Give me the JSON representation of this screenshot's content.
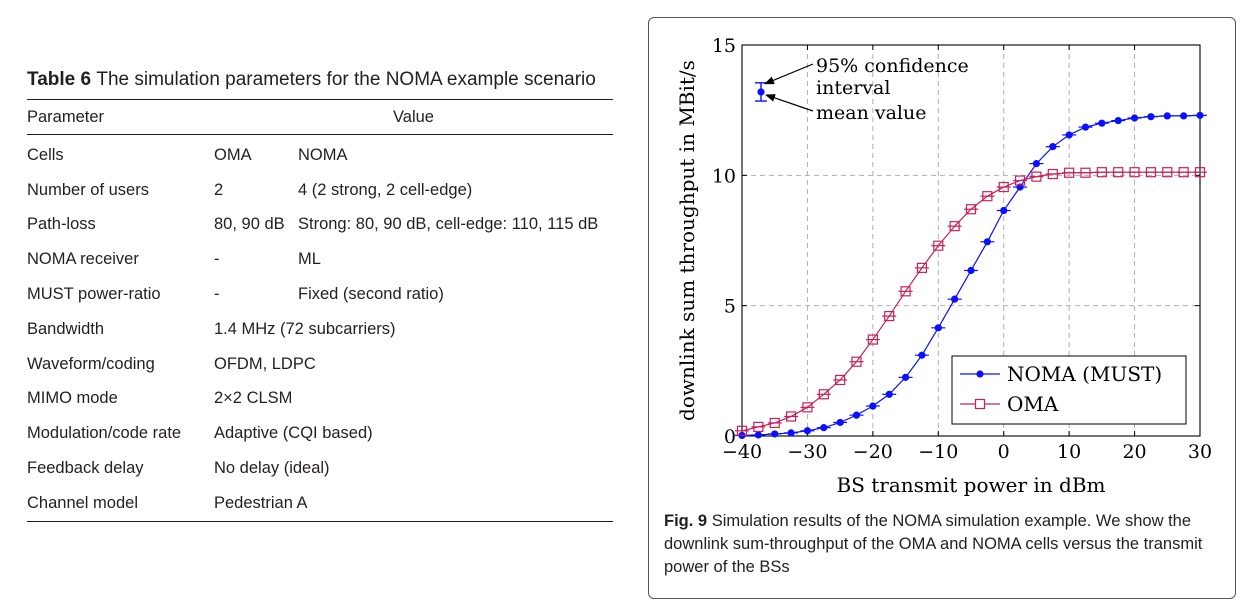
{
  "table": {
    "caption_label": "Table 6",
    "caption_text": "The simulation parameters for the NOMA example scenario",
    "headers": [
      "Parameter",
      "Value"
    ],
    "rows": [
      {
        "param": "Cells",
        "oma": "OMA",
        "noma": "NOMA",
        "span": false
      },
      {
        "param": "Number of users",
        "oma": "2",
        "noma": "4 (2 strong, 2 cell-edge)",
        "span": false
      },
      {
        "param": "Path-loss",
        "oma": "80, 90 dB",
        "noma": "Strong: 80, 90 dB, cell-edge: 110, 115 dB",
        "span": false
      },
      {
        "param": "NOMA receiver",
        "oma": "-",
        "noma": "ML",
        "span": false
      },
      {
        "param": "MUST power-ratio",
        "oma": "-",
        "noma": "Fixed (second ratio)",
        "span": false
      },
      {
        "param": "Bandwidth",
        "value": "1.4 MHz (72 subcarriers)",
        "span": true
      },
      {
        "param": "Waveform/coding",
        "value": "OFDM, LDPC",
        "span": true
      },
      {
        "param": "MIMO mode",
        "value": "2×2 CLSM",
        "span": true
      },
      {
        "param": "Modulation/code rate",
        "value": "Adaptive (CQI based)",
        "span": true
      },
      {
        "param": "Feedback delay",
        "value": "No delay (ideal)",
        "span": true
      },
      {
        "param": "Channel model",
        "value": "Pedestrian A",
        "span": true
      }
    ]
  },
  "figure": {
    "caption_label": "Fig. 9",
    "caption_text": "Simulation results of the NOMA simulation example. We show the downlink sum-throughput of the OMA and NOMA cells versus the transmit power of the BSs"
  },
  "chart_data": {
    "type": "line",
    "xlabel": "BS transmit power in dBm",
    "ylabel": "downlink sum throughput in MBit/s",
    "xlim": [
      -40,
      30
    ],
    "ylim": [
      0,
      15
    ],
    "xticks": [
      -40,
      -30,
      -20,
      -10,
      0,
      10,
      20,
      30
    ],
    "xtick_labels": [
      "−40",
      "−30",
      "−20",
      "−10",
      "0",
      "10",
      "20",
      "30"
    ],
    "yticks": [
      0,
      5,
      10,
      15
    ],
    "ytick_labels": [
      "0",
      "5",
      "10",
      "15"
    ],
    "grid": true,
    "legend_position": "bottom-right",
    "x": [
      -40,
      -37.5,
      -35,
      -32.5,
      -30,
      -27.5,
      -25,
      -22.5,
      -20,
      -17.5,
      -15,
      -12.5,
      -10,
      -7.5,
      -5,
      -2.5,
      0,
      2.5,
      5,
      7.5,
      10,
      12.5,
      15,
      17.5,
      20,
      22.5,
      25,
      27.5,
      30
    ],
    "series": [
      {
        "name": "NOMA (MUST)",
        "color": "#0a10ff",
        "marker": "circle",
        "values": [
          0.02,
          0.04,
          0.08,
          0.12,
          0.2,
          0.32,
          0.52,
          0.8,
          1.15,
          1.6,
          2.25,
          3.1,
          4.15,
          5.25,
          6.35,
          7.45,
          8.65,
          9.55,
          10.45,
          11.1,
          11.55,
          11.85,
          12.0,
          12.1,
          12.2,
          12.25,
          12.28,
          12.28,
          12.3
        ]
      },
      {
        "name": "OMA",
        "color": "#c8205a",
        "marker": "square",
        "values": [
          0.2,
          0.35,
          0.5,
          0.75,
          1.1,
          1.6,
          2.15,
          2.85,
          3.7,
          4.6,
          5.55,
          6.45,
          7.3,
          8.05,
          8.7,
          9.2,
          9.55,
          9.8,
          9.95,
          10.05,
          10.1,
          10.1,
          10.12,
          10.12,
          10.12,
          10.12,
          10.12,
          10.12,
          10.12
        ]
      }
    ],
    "annotation": {
      "confidence_label_line1": "95% confidence",
      "confidence_label_line2": "interval",
      "mean_label": "mean value",
      "example_mean": 13.2,
      "example_ci": [
        12.85,
        13.55
      ]
    }
  }
}
